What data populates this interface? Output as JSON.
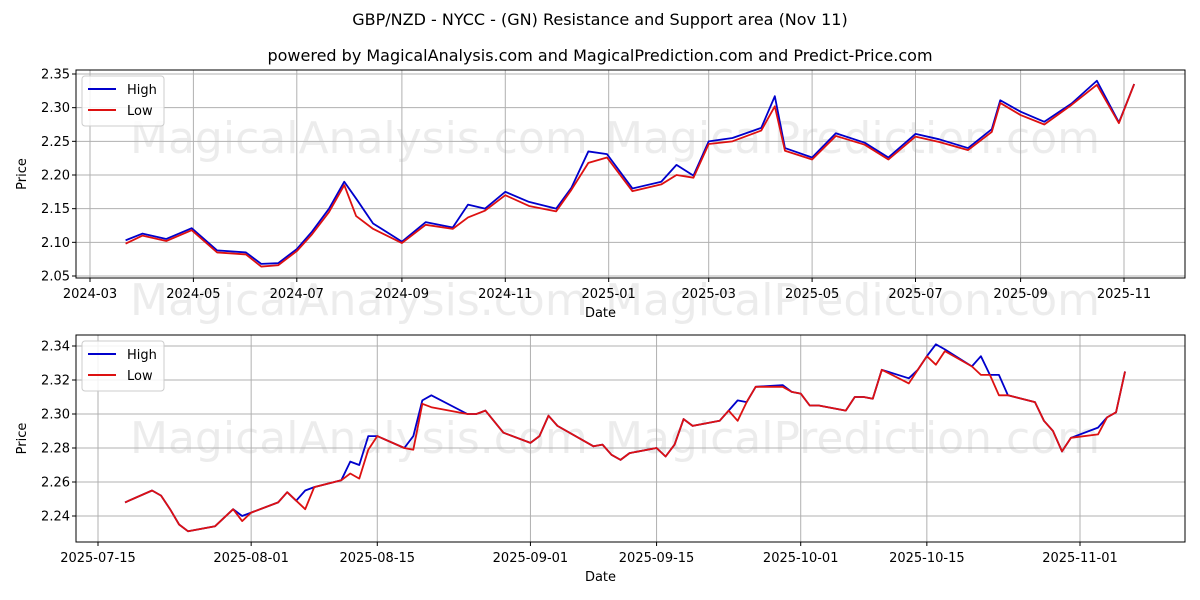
{
  "header": {
    "title": "GBP/NZD - NYCC -  (GN) Resistance and Support area (Nov 11)",
    "subtitle": "powered by MagicalAnalysis.com and MagicalPrediction.com and Predict-Price.com"
  },
  "watermarks": [
    "MagicalAnalysis.com",
    "MagicalPrediction.com"
  ],
  "colors": {
    "high": "#0000cc",
    "low": "#dd1111",
    "grid": "#b0b0b0"
  },
  "legend": {
    "high": "High",
    "low": "Low"
  },
  "chart_data": [
    {
      "type": "line",
      "title": "Long-term",
      "xlabel": "Date",
      "ylabel": "Price",
      "ylim": [
        2.05,
        2.35
      ],
      "yticks": [
        "2.05",
        "2.10",
        "2.15",
        "2.20",
        "2.25",
        "2.30",
        "2.35"
      ],
      "xticks": [
        "2024-03",
        "2024-05",
        "2024-07",
        "2024-09",
        "2024-11",
        "2025-01",
        "2025-03",
        "2025-05",
        "2025-07",
        "2025-09",
        "2025-11"
      ],
      "grid": true,
      "legend_position": "upper left",
      "x": [
        "2024-03-22",
        "2024-04-01",
        "2024-04-15",
        "2024-04-30",
        "2024-05-15",
        "2024-06-01",
        "2024-06-10",
        "2024-06-20",
        "2024-07-01",
        "2024-07-10",
        "2024-07-20",
        "2024-07-29",
        "2024-08-05",
        "2024-08-15",
        "2024-09-01",
        "2024-09-15",
        "2024-10-01",
        "2024-10-10",
        "2024-10-20",
        "2024-11-01",
        "2024-11-15",
        "2024-12-01",
        "2024-12-10",
        "2024-12-20",
        "2024-12-31",
        "2025-01-15",
        "2025-02-01",
        "2025-02-10",
        "2025-02-20",
        "2025-03-01",
        "2025-03-15",
        "2025-04-01",
        "2025-04-09",
        "2025-04-15",
        "2025-05-01",
        "2025-05-15",
        "2025-06-01",
        "2025-06-15",
        "2025-07-01",
        "2025-07-15",
        "2025-08-01",
        "2025-08-15",
        "2025-08-20",
        "2025-09-01",
        "2025-09-15",
        "2025-10-01",
        "2025-10-16",
        "2025-10-29",
        "2025-11-07"
      ],
      "series": [
        {
          "name": "High",
          "values": [
            2.103,
            2.113,
            2.105,
            2.121,
            2.088,
            2.085,
            2.068,
            2.069,
            2.09,
            2.116,
            2.15,
            2.19,
            2.165,
            2.128,
            2.101,
            2.13,
            2.122,
            2.156,
            2.15,
            2.175,
            2.16,
            2.15,
            2.181,
            2.235,
            2.231,
            2.18,
            2.19,
            2.215,
            2.199,
            2.25,
            2.255,
            2.27,
            2.317,
            2.24,
            2.226,
            2.262,
            2.248,
            2.226,
            2.261,
            2.253,
            2.24,
            2.268,
            2.311,
            2.294,
            2.279,
            2.306,
            2.34,
            2.278,
            2.335
          ]
        },
        {
          "name": "Low",
          "values": [
            2.098,
            2.11,
            2.102,
            2.118,
            2.085,
            2.082,
            2.064,
            2.066,
            2.087,
            2.112,
            2.145,
            2.185,
            2.139,
            2.12,
            2.099,
            2.126,
            2.12,
            2.137,
            2.147,
            2.17,
            2.154,
            2.146,
            2.178,
            2.218,
            2.226,
            2.176,
            2.186,
            2.2,
            2.196,
            2.246,
            2.25,
            2.266,
            2.302,
            2.236,
            2.223,
            2.258,
            2.245,
            2.223,
            2.257,
            2.249,
            2.237,
            2.264,
            2.307,
            2.289,
            2.275,
            2.304,
            2.334,
            2.277,
            2.335
          ]
        }
      ]
    },
    {
      "type": "line",
      "title": "Short-term",
      "xlabel": "Date",
      "ylabel": "Price",
      "ylim": [
        2.225,
        2.346
      ],
      "yticks": [
        "2.24",
        "2.26",
        "2.28",
        "2.30",
        "2.32",
        "2.34"
      ],
      "xticks": [
        "2025-07-15",
        "2025-08-01",
        "2025-08-15",
        "2025-09-01",
        "2025-09-15",
        "2025-10-01",
        "2025-10-15",
        "2025-11-01"
      ],
      "grid": true,
      "legend_position": "upper left",
      "x": [
        "07-18",
        "07-21",
        "07-22",
        "07-23",
        "07-24",
        "07-25",
        "07-28",
        "07-30",
        "07-31",
        "08-01",
        "08-04",
        "08-05",
        "08-06",
        "08-07",
        "08-08",
        "08-11",
        "08-12",
        "08-13",
        "08-14",
        "08-15",
        "08-18",
        "08-19",
        "08-20",
        "08-21",
        "08-25",
        "08-26",
        "08-27",
        "08-29",
        "09-01",
        "09-02",
        "09-03",
        "09-04",
        "09-08",
        "09-09",
        "09-10",
        "09-11",
        "09-12",
        "09-15",
        "09-16",
        "09-17",
        "09-18",
        "09-19",
        "09-22",
        "09-23",
        "09-24",
        "09-25",
        "09-26",
        "09-29",
        "09-30",
        "10-01",
        "10-02",
        "10-03",
        "10-06",
        "10-07",
        "10-08",
        "10-09",
        "10-10",
        "10-13",
        "10-14",
        "10-15",
        "10-16",
        "10-17",
        "10-20",
        "10-21",
        "10-22",
        "10-23",
        "10-24",
        "10-27",
        "10-28",
        "10-29",
        "10-30",
        "10-31",
        "11-03",
        "11-04",
        "11-05",
        "11-06"
      ],
      "series": [
        {
          "name": "High",
          "values": [
            2.248,
            2.255,
            2.252,
            2.244,
            2.235,
            2.231,
            2.234,
            2.244,
            2.24,
            2.242,
            2.248,
            2.254,
            2.249,
            2.255,
            2.257,
            2.261,
            2.272,
            2.27,
            2.287,
            2.287,
            2.28,
            2.287,
            2.308,
            2.311,
            2.3,
            2.3,
            2.302,
            2.289,
            2.283,
            2.287,
            2.299,
            2.293,
            2.281,
            2.282,
            2.276,
            2.273,
            2.277,
            2.28,
            2.275,
            2.282,
            2.297,
            2.293,
            2.296,
            2.302,
            2.308,
            2.307,
            2.316,
            2.317,
            2.313,
            2.312,
            2.305,
            2.305,
            2.302,
            2.31,
            2.31,
            2.309,
            2.326,
            2.321,
            2.326,
            2.334,
            2.341,
            2.338,
            2.328,
            2.334,
            2.323,
            2.323,
            2.311,
            2.307,
            2.296,
            2.29,
            2.278,
            2.286,
            2.292,
            2.298,
            2.301,
            2.325
          ]
        },
        {
          "name": "Low",
          "values": [
            2.248,
            2.255,
            2.252,
            2.244,
            2.235,
            2.231,
            2.234,
            2.244,
            2.237,
            2.242,
            2.248,
            2.254,
            2.249,
            2.244,
            2.257,
            2.261,
            2.265,
            2.262,
            2.279,
            2.287,
            2.28,
            2.279,
            2.306,
            2.304,
            2.3,
            2.3,
            2.302,
            2.289,
            2.283,
            2.287,
            2.299,
            2.293,
            2.281,
            2.282,
            2.276,
            2.273,
            2.277,
            2.28,
            2.275,
            2.282,
            2.297,
            2.293,
            2.296,
            2.302,
            2.296,
            2.307,
            2.316,
            2.316,
            2.313,
            2.312,
            2.305,
            2.305,
            2.302,
            2.31,
            2.31,
            2.309,
            2.326,
            2.318,
            2.326,
            2.334,
            2.329,
            2.337,
            2.328,
            2.323,
            2.323,
            2.311,
            2.311,
            2.307,
            2.296,
            2.29,
            2.278,
            2.286,
            2.288,
            2.298,
            2.301,
            2.325
          ]
        }
      ]
    }
  ]
}
